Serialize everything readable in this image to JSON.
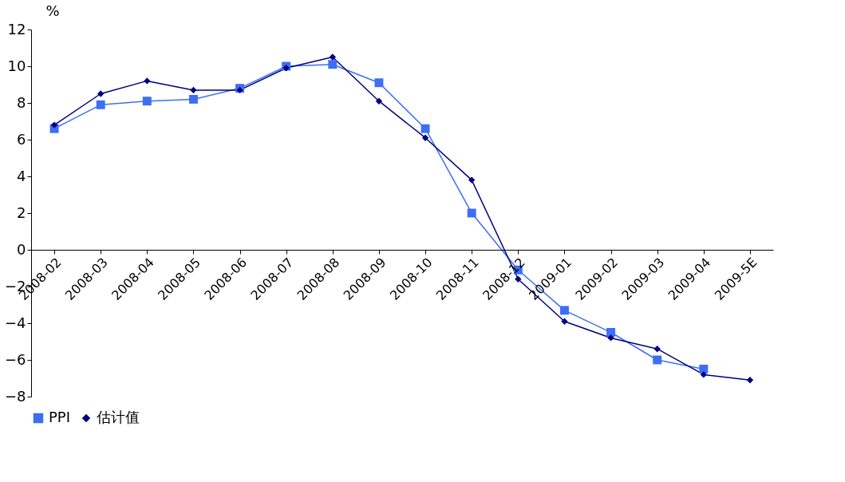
{
  "chart_data": {
    "type": "line",
    "ylabel": "%",
    "categories": [
      "2008-02",
      "2008-03",
      "2008-04",
      "2008-05",
      "2008-06",
      "2008-07",
      "2008-08",
      "2008-09",
      "2008-10",
      "2008-11",
      "2008-12",
      "2009-01",
      "2009-02",
      "2009-03",
      "2009-04",
      "2009-5E"
    ],
    "series": [
      {
        "name": "PPI",
        "color": "#3d6ef5",
        "marker": "square",
        "values": [
          6.6,
          7.9,
          8.1,
          8.2,
          8.8,
          10.0,
          10.1,
          9.1,
          6.6,
          2.0,
          -1.1,
          -3.3,
          -4.5,
          -6.0,
          -6.5,
          null
        ]
      },
      {
        "name": "估计值",
        "color": "#000080",
        "marker": "diamond",
        "values": [
          6.8,
          8.5,
          9.2,
          8.7,
          8.7,
          9.9,
          10.5,
          8.1,
          6.1,
          3.8,
          -1.6,
          -3.9,
          -4.8,
          -5.4,
          -6.8,
          -7.1
        ]
      }
    ],
    "ylim": [
      -8,
      12
    ],
    "yticks": [
      -8,
      -6,
      -4,
      -2,
      0,
      2,
      4,
      6,
      8,
      10,
      12
    ],
    "grid": false,
    "legend": "bottom",
    "line_style": "solid"
  }
}
